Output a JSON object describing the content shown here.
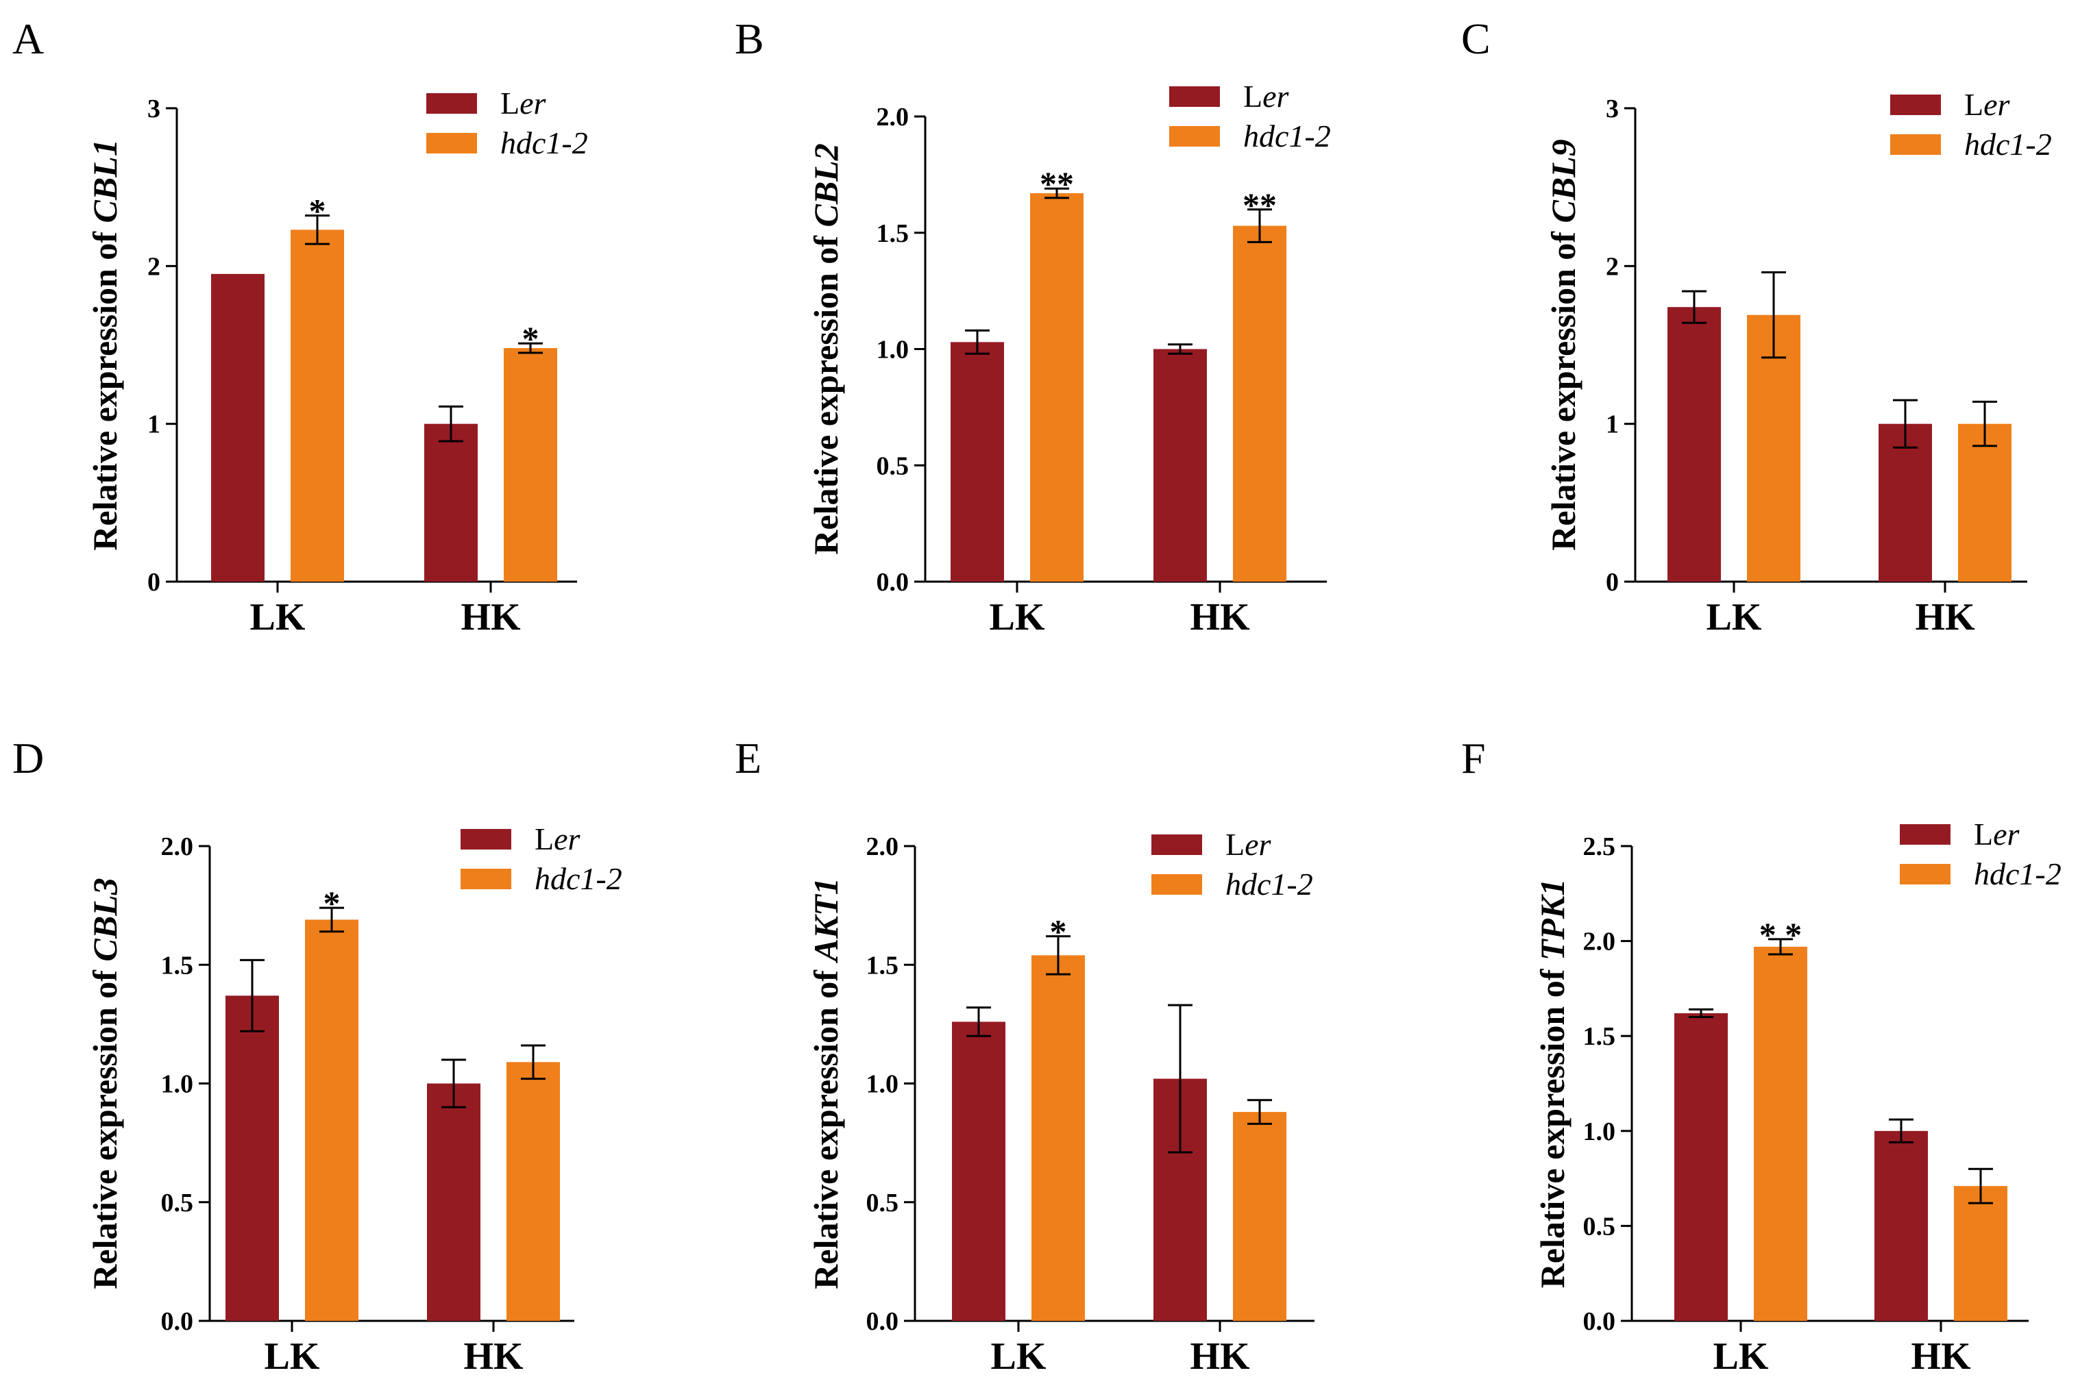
{
  "figure": {
    "legend": {
      "ler_prefix": "L",
      "ler_suffix": "er",
      "hdc": "hdc1-2"
    },
    "colors": {
      "ler": "#951b23",
      "hdc": "#ef7f1a",
      "axis": "#000000"
    }
  },
  "chart_data": [
    {
      "panel": "A",
      "type": "bar",
      "title": "",
      "ylabel_prefix": "Relative expression of ",
      "gene": "CBL1",
      "categories": [
        "LK",
        "HK"
      ],
      "series": [
        {
          "name": "Ler",
          "values": [
            1.95,
            1.0
          ],
          "errors": [
            0.0,
            0.11
          ]
        },
        {
          "name": "hdc1-2",
          "values": [
            2.23,
            1.48
          ],
          "errors": [
            0.09,
            0.03
          ]
        }
      ],
      "significance": [
        [
          "",
          "*"
        ],
        [
          "",
          "*"
        ]
      ],
      "ylim": [
        0,
        3
      ],
      "yticks": [
        0,
        1,
        2,
        3
      ],
      "ytick_labels": [
        "0",
        "1",
        "2",
        "3"
      ]
    },
    {
      "panel": "B",
      "type": "bar",
      "title": "",
      "ylabel_prefix": "Relative expression of ",
      "gene": "CBL2",
      "categories": [
        "LK",
        "HK"
      ],
      "series": [
        {
          "name": "Ler",
          "values": [
            1.03,
            1.0
          ],
          "errors": [
            0.05,
            0.02
          ]
        },
        {
          "name": "hdc1-2",
          "values": [
            1.67,
            1.53
          ],
          "errors": [
            0.02,
            0.07
          ]
        }
      ],
      "significance": [
        [
          "",
          "**"
        ],
        [
          "",
          "**"
        ]
      ],
      "ylim": [
        0,
        2.0
      ],
      "yticks": [
        0,
        0.5,
        1.0,
        1.5,
        2.0
      ],
      "ytick_labels": [
        "0.0",
        "0.5",
        "1.0",
        "1.5",
        "2.0"
      ]
    },
    {
      "panel": "C",
      "type": "bar",
      "title": "",
      "ylabel_prefix": "Relative expression of ",
      "gene": "CBL9",
      "categories": [
        "LK",
        "HK"
      ],
      "series": [
        {
          "name": "Ler",
          "values": [
            1.74,
            1.0
          ],
          "errors": [
            0.1,
            0.15
          ]
        },
        {
          "name": "hdc1-2",
          "values": [
            1.69,
            1.0
          ],
          "errors": [
            0.27,
            0.14
          ]
        }
      ],
      "significance": [
        [
          "",
          ""
        ],
        [
          "",
          ""
        ]
      ],
      "ylim": [
        0,
        3
      ],
      "yticks": [
        0,
        1,
        2,
        3
      ],
      "ytick_labels": [
        "0",
        "1",
        "2",
        "3"
      ]
    },
    {
      "panel": "D",
      "type": "bar",
      "title": "",
      "ylabel_prefix": "Relative expression of ",
      "gene": "CBL3",
      "categories": [
        "LK",
        "HK"
      ],
      "series": [
        {
          "name": "Ler",
          "values": [
            1.37,
            1.0
          ],
          "errors": [
            0.15,
            0.1
          ]
        },
        {
          "name": "hdc1-2",
          "values": [
            1.69,
            1.09
          ],
          "errors": [
            0.05,
            0.07
          ]
        }
      ],
      "significance": [
        [
          "",
          "*"
        ],
        [
          "",
          ""
        ]
      ],
      "ylim": [
        0,
        2.0
      ],
      "yticks": [
        0,
        0.5,
        1.0,
        1.5,
        2.0
      ],
      "ytick_labels": [
        "0.0",
        "0.5",
        "1.0",
        "1.5",
        "2.0"
      ]
    },
    {
      "panel": "E",
      "type": "bar",
      "title": "",
      "ylabel_prefix": "Relative expression of ",
      "gene": "AKT1",
      "categories": [
        "LK",
        "HK"
      ],
      "series": [
        {
          "name": "Ler",
          "values": [
            1.26,
            1.02
          ],
          "errors": [
            0.06,
            0.31
          ]
        },
        {
          "name": "hdc1-2",
          "values": [
            1.54,
            0.88
          ],
          "errors": [
            0.08,
            0.05
          ]
        }
      ],
      "significance": [
        [
          "",
          "*"
        ],
        [
          "",
          ""
        ]
      ],
      "ylim": [
        0,
        2.0
      ],
      "yticks": [
        0,
        0.5,
        1.0,
        1.5,
        2.0
      ],
      "ytick_labels": [
        "0.0",
        "0.5",
        "1.0",
        "1.5",
        "2.0"
      ]
    },
    {
      "panel": "F",
      "type": "bar",
      "title": "",
      "ylabel_prefix": "Relative expression of ",
      "gene": "TPK1",
      "categories": [
        "LK",
        "HK"
      ],
      "series": [
        {
          "name": "Ler",
          "values": [
            1.62,
            1.0
          ],
          "errors": [
            0.02,
            0.06
          ]
        },
        {
          "name": "hdc1-2",
          "values": [
            1.97,
            0.71
          ],
          "errors": [
            0.04,
            0.09
          ]
        }
      ],
      "significance": [
        [
          "",
          "* *"
        ],
        [
          "",
          ""
        ]
      ],
      "ylim": [
        0,
        2.5
      ],
      "yticks": [
        0,
        0.5,
        1.0,
        1.5,
        2.0,
        2.5
      ],
      "ytick_labels": [
        "0.0",
        "0.5",
        "1.0",
        "1.5",
        "2.0",
        "2.5"
      ]
    }
  ]
}
